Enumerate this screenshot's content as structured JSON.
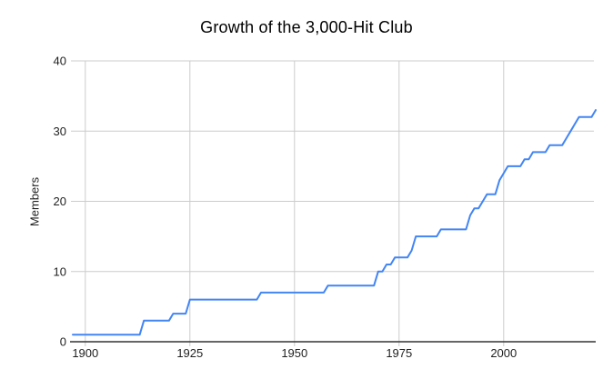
{
  "colors": {
    "line": "#4285f4",
    "grid": "#cccccc",
    "axis": "#333333",
    "tick_text": "#1f1f1f",
    "title_text": "#000000",
    "background": "#ffffff"
  },
  "chart_data": {
    "type": "line",
    "title": "Growth of the 3,000-Hit Club",
    "xlabel": "",
    "ylabel": "Members",
    "legend": "none",
    "grid": true,
    "markers": false,
    "xlim": [
      1897,
      2022
    ],
    "ylim": [
      0,
      40
    ],
    "x_ticks": [
      1900,
      1925,
      1950,
      1975,
      2000
    ],
    "y_ticks": [
      0,
      10,
      20,
      30,
      40
    ],
    "x_start": 1897,
    "x_step": 1,
    "series": [
      {
        "name": "Members",
        "values": [
          1,
          1,
          1,
          1,
          1,
          1,
          1,
          1,
          1,
          1,
          1,
          1,
          1,
          1,
          1,
          1,
          1,
          3,
          3,
          3,
          3,
          3,
          3,
          3,
          4,
          4,
          4,
          4,
          6,
          6,
          6,
          6,
          6,
          6,
          6,
          6,
          6,
          6,
          6,
          6,
          6,
          6,
          6,
          6,
          6,
          7,
          7,
          7,
          7,
          7,
          7,
          7,
          7,
          7,
          7,
          7,
          7,
          7,
          7,
          7,
          7,
          8,
          8,
          8,
          8,
          8,
          8,
          8,
          8,
          8,
          8,
          8,
          8,
          10,
          10,
          11,
          11,
          12,
          12,
          12,
          12,
          13,
          15,
          15,
          15,
          15,
          15,
          15,
          16,
          16,
          16,
          16,
          16,
          16,
          16,
          18,
          19,
          19,
          20,
          21,
          21,
          21,
          23,
          24,
          25,
          25,
          25,
          25,
          26,
          26,
          27,
          27,
          27,
          27,
          28,
          28,
          28,
          28,
          29,
          30,
          31,
          32,
          32,
          32,
          32,
          33
        ]
      }
    ]
  }
}
